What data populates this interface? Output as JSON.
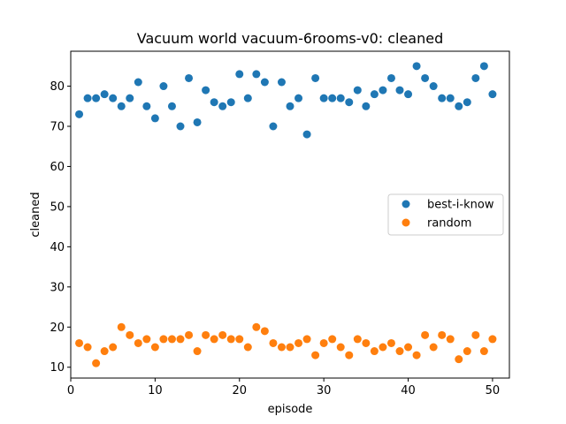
{
  "chart_data": {
    "type": "scatter",
    "title": "Vacuum world vacuum-6rooms-v0: cleaned",
    "xlabel": "episode",
    "ylabel": "cleaned",
    "xlim": [
      0,
      52
    ],
    "ylim": [
      7.3,
      88.7
    ],
    "xticks": [
      0,
      10,
      20,
      30,
      40,
      50
    ],
    "yticks": [
      10,
      20,
      30,
      40,
      50,
      60,
      70,
      80
    ],
    "grid": false,
    "legend_position": "center-right",
    "x": [
      1,
      2,
      3,
      4,
      5,
      6,
      7,
      8,
      9,
      10,
      11,
      12,
      13,
      14,
      15,
      16,
      17,
      18,
      19,
      20,
      21,
      22,
      23,
      24,
      25,
      26,
      27,
      28,
      29,
      30,
      31,
      32,
      33,
      34,
      35,
      36,
      37,
      38,
      39,
      40,
      41,
      42,
      43,
      44,
      45,
      46,
      47,
      48,
      49,
      50
    ],
    "series": [
      {
        "name": "best-i-know",
        "color": "#1f77b4",
        "values": [
          73,
          77,
          77,
          78,
          77,
          75,
          77,
          81,
          75,
          72,
          80,
          75,
          70,
          82,
          71,
          79,
          76,
          75,
          76,
          83,
          77,
          83,
          81,
          70,
          81,
          75,
          77,
          68,
          82,
          77,
          77,
          77,
          76,
          79,
          75,
          78,
          79,
          82,
          79,
          78,
          85,
          82,
          80,
          77,
          77,
          75,
          76,
          82,
          85,
          78
        ]
      },
      {
        "name": "random",
        "color": "#ff7f0e",
        "values": [
          16,
          15,
          11,
          14,
          15,
          20,
          18,
          16,
          17,
          15,
          17,
          17,
          17,
          18,
          14,
          18,
          17,
          18,
          17,
          17,
          15,
          20,
          19,
          16,
          15,
          15,
          16,
          17,
          13,
          16,
          17,
          15,
          13,
          17,
          16,
          14,
          15,
          16,
          14,
          15,
          13,
          18,
          15,
          18,
          17,
          12,
          14,
          18,
          14,
          17
        ]
      }
    ]
  }
}
